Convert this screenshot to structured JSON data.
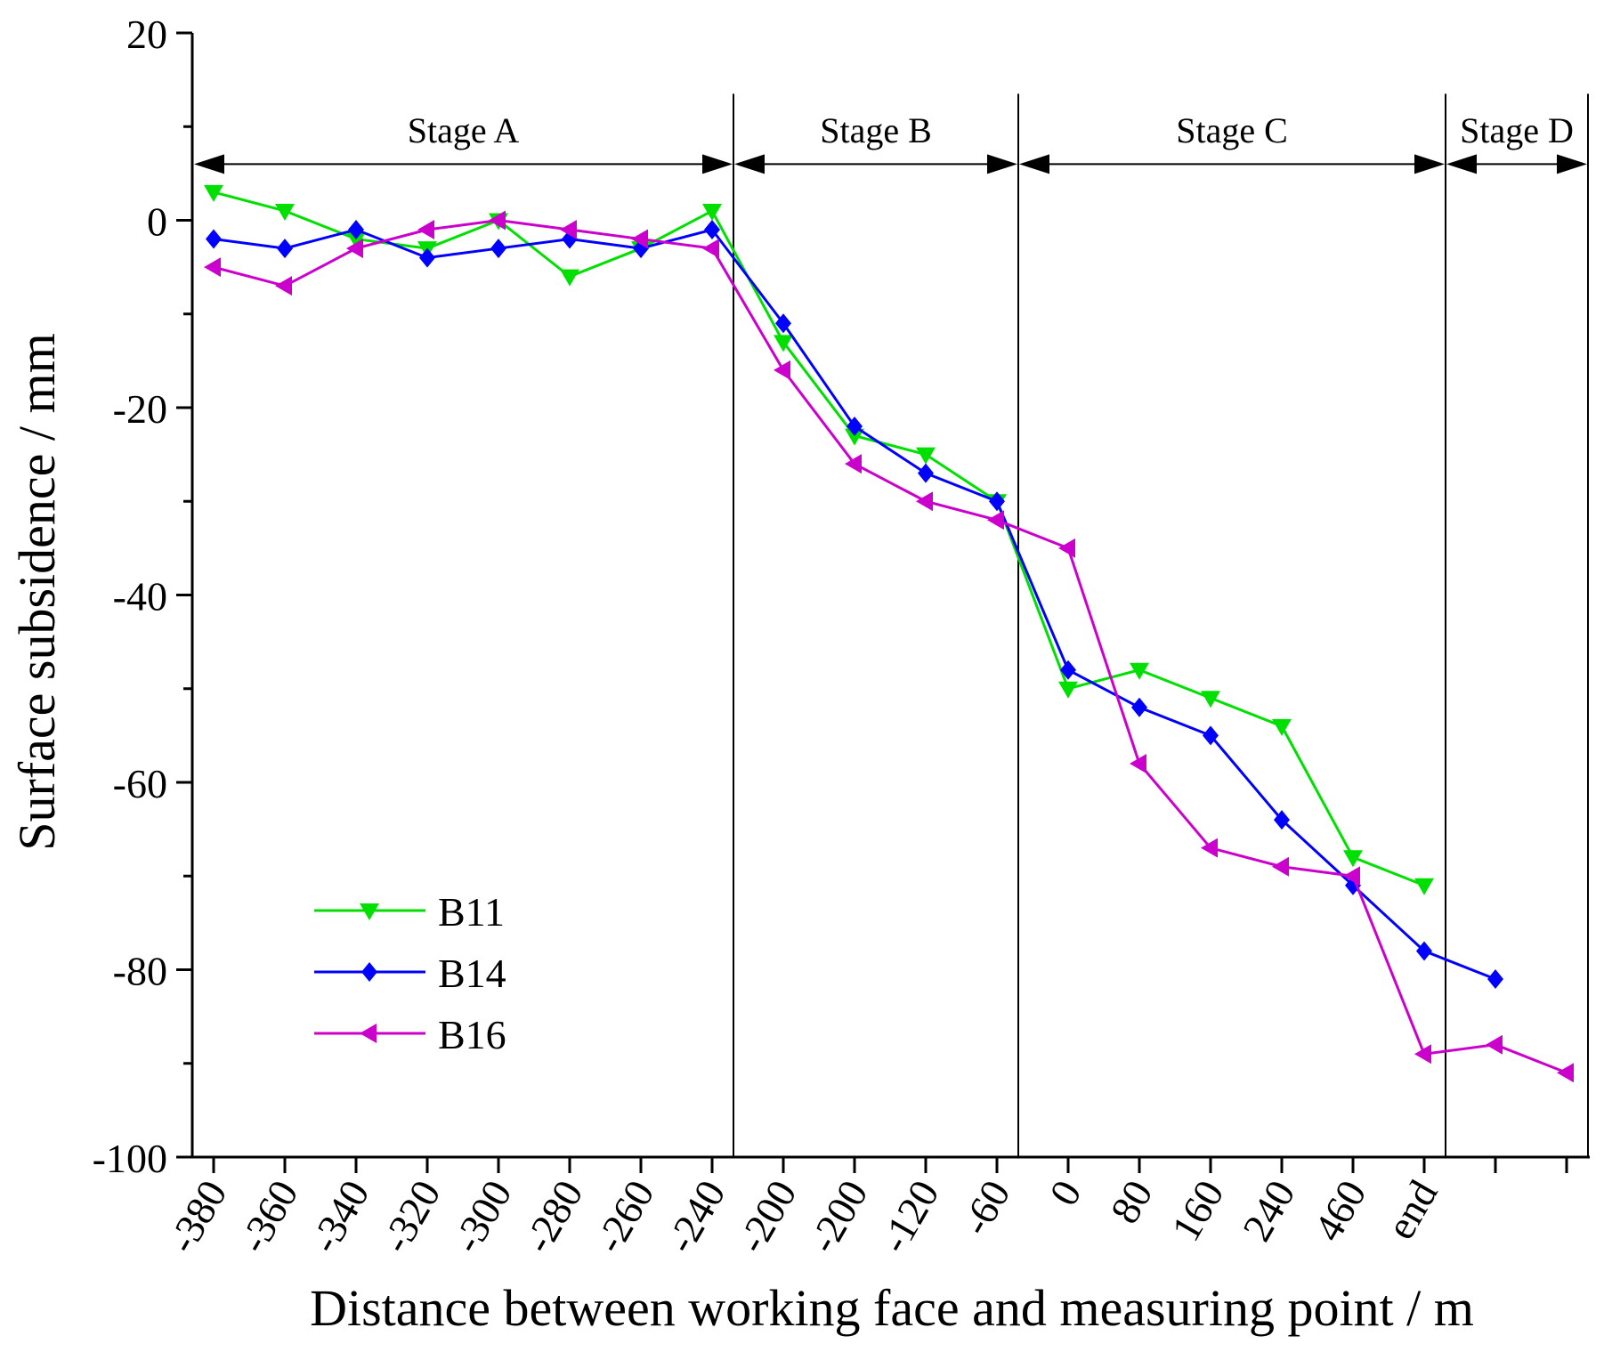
{
  "chart_data": {
    "type": "line",
    "title": "",
    "xlabel": "Distance between working face and measuring point / m",
    "ylabel": "Surface subsidence / mm",
    "ylim": [
      -100,
      20
    ],
    "yticks": [
      -100,
      -80,
      -60,
      -40,
      -20,
      0,
      20
    ],
    "categories": [
      "-380",
      "-360",
      "-340",
      "-320",
      "-300",
      "-280",
      "-260",
      "-240",
      "-200",
      "-200",
      "-120",
      "-60",
      "0",
      "80",
      "160",
      "240",
      "460",
      "end",
      "",
      ""
    ],
    "series": [
      {
        "name": "B11",
        "color": "#00e000",
        "marker": "triangle-down",
        "values": [
          3,
          1,
          -2,
          -3,
          0,
          -6,
          -3,
          1,
          -13,
          -23,
          -25,
          -30,
          -50,
          -48,
          -51,
          -54,
          -68,
          -71,
          null,
          null
        ]
      },
      {
        "name": "B14",
        "color": "#0000ff",
        "marker": "diamond",
        "values": [
          -2,
          -3,
          -1,
          -4,
          -3,
          -2,
          -3,
          -1,
          -11,
          -22,
          -27,
          -30,
          -48,
          -52,
          -55,
          -64,
          -71,
          -78,
          -81,
          null
        ]
      },
      {
        "name": "B16",
        "color": "#cc00cc",
        "marker": "triangle-left",
        "values": [
          -5,
          -7,
          -3,
          -1,
          0,
          -1,
          -2,
          -3,
          -16,
          -26,
          -30,
          -32,
          -35,
          -58,
          -67,
          -69,
          -70,
          -89,
          -88,
          -91
        ]
      }
    ],
    "stages": [
      {
        "label": "Stage A",
        "from": 0,
        "to": 7.3
      },
      {
        "label": "Stage B",
        "from": 7.3,
        "to": 11.3
      },
      {
        "label": "Stage C",
        "from": 11.3,
        "to": 17.3
      },
      {
        "label": "Stage D",
        "from": 17.3,
        "to": 19.3
      }
    ],
    "legend": {
      "position": "lower-left"
    }
  }
}
